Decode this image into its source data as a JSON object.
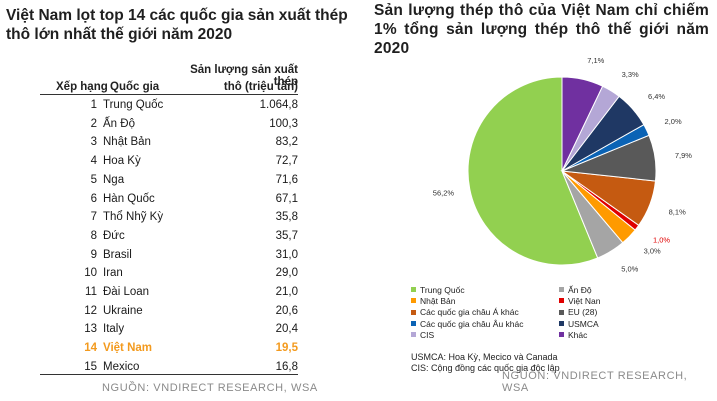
{
  "left": {
    "title": "Việt Nam lọt top 14 các quốc gia sản xuất thép thô lớn nhất thế giới năm 2020",
    "col_rank": "Xếp hạng",
    "col_country": "Quốc gia",
    "col_value_line1": "Sản lượng sản xuất thép",
    "col_value_line2": "thô (triệu tấn)",
    "rows": [
      {
        "rank": "1",
        "country": "Trung Quốc",
        "value": "1.064,8"
      },
      {
        "rank": "2",
        "country": "Ấn Độ",
        "value": "100,3"
      },
      {
        "rank": "3",
        "country": "Nhật Bản",
        "value": "83,2"
      },
      {
        "rank": "4",
        "country": "Hoa Kỳ",
        "value": "72,7"
      },
      {
        "rank": "5",
        "country": "Nga",
        "value": "71,6"
      },
      {
        "rank": "6",
        "country": "Hàn Quốc",
        "value": "67,1"
      },
      {
        "rank": "7",
        "country": "Thổ Nhỹ Kỳ",
        "value": "35,8"
      },
      {
        "rank": "8",
        "country": "Đức",
        "value": "35,7"
      },
      {
        "rank": "9",
        "country": "Brasil",
        "value": "31,0"
      },
      {
        "rank": "10",
        "country": "Iran",
        "value": "29,0"
      },
      {
        "rank": "11",
        "country": "Đài Loan",
        "value": "21,0"
      },
      {
        "rank": "12",
        "country": "Ukraine",
        "value": "20,6"
      },
      {
        "rank": "13",
        "country": "Italy",
        "value": "20,4"
      },
      {
        "rank": "14",
        "country": "Việt Nam",
        "value": "19,5",
        "highlight": true
      },
      {
        "rank": "15",
        "country": "Mexico",
        "value": "16,8"
      }
    ],
    "source": "NGUỒN: VNDIRECT RESEARCH, WSA"
  },
  "right": {
    "title": "Sản lượng thép thô của Việt Nam chỉ chiếm 1% tổng sản lượng thép thô thế giới năm 2020",
    "notes": [
      "USMCA: Hoa Kỳ, Mecico và Canada",
      "CIS: Cộng đồng các quốc gia độc lập"
    ],
    "source": "NGUỒN: VNDIRECT RESEARCH, WSA"
  },
  "chart_data": {
    "type": "pie",
    "title": "Sản lượng thép thô của Việt Nam chỉ chiếm 1% tổng sản lượng thép thô thế giới năm 2020",
    "legend_position": "bottom",
    "slices": [
      {
        "name": "Trung Quốc",
        "value": 56.2,
        "label": "56,2%",
        "color": "#92d050"
      },
      {
        "name": "Ấn Độ",
        "value": 5.0,
        "label": "5,0%",
        "color": "#a5a5a5"
      },
      {
        "name": "Nhật Bản",
        "value": 3.0,
        "label": "3,0%",
        "color": "#ff9a00"
      },
      {
        "name": "Việt Nan",
        "value": 1.0,
        "label": "1,0%",
        "color": "#e00000",
        "label_color": "#e00000"
      },
      {
        "name": "Các quốc gia châu Á khác",
        "value": 8.1,
        "label": "8,1%",
        "color": "#c55a11"
      },
      {
        "name": "EU (28)",
        "value": 7.9,
        "label": "7,9%",
        "color": "#595959"
      },
      {
        "name": "Các quốc gia châu Âu khác",
        "value": 2.0,
        "label": "2,0%",
        "color": "#0b63b5"
      },
      {
        "name": "USMCA",
        "value": 6.4,
        "label": "6,4%",
        "color": "#1f3864"
      },
      {
        "name": "CIS",
        "value": 3.3,
        "label": "3,3%",
        "color": "#b4a7d6"
      },
      {
        "name": "Khác",
        "value": 7.1,
        "label": "7,1%",
        "color": "#7030a0"
      }
    ]
  }
}
